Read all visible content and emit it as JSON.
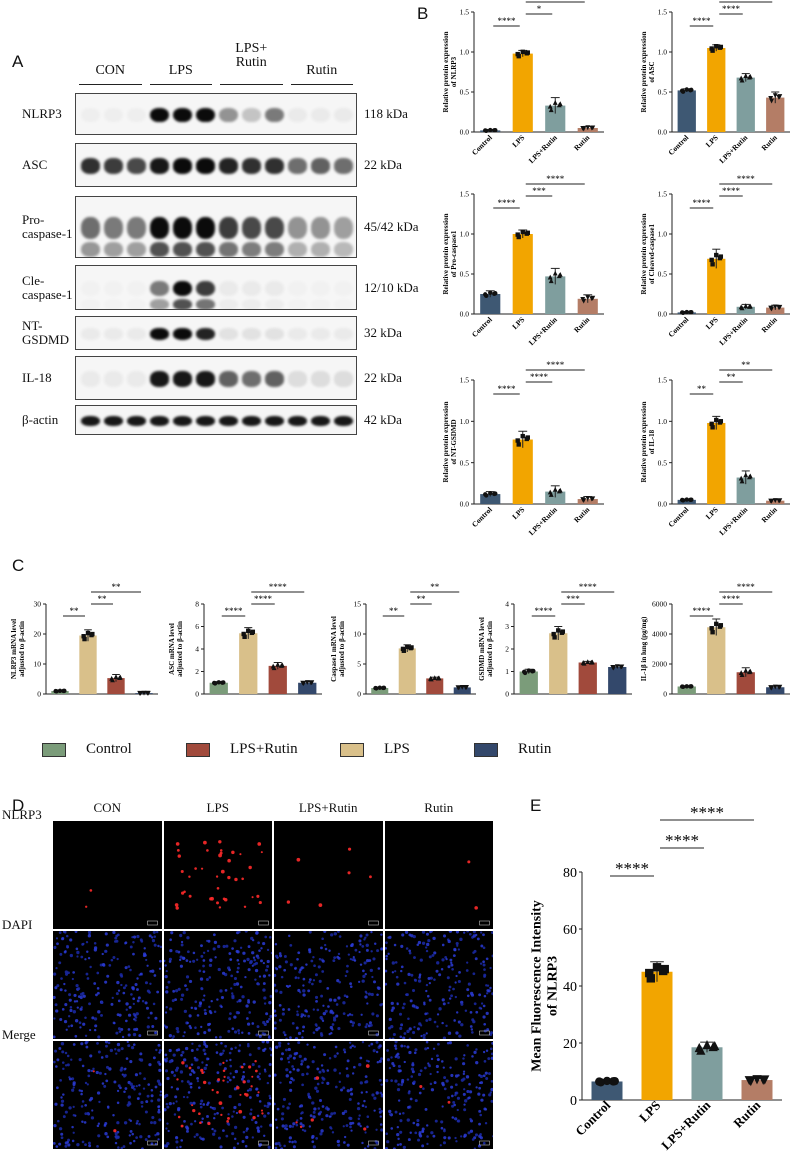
{
  "panels": {
    "A": "A",
    "B": "B",
    "C": "C",
    "D": "D",
    "E": "E"
  },
  "western_blot": {
    "groups": [
      "CON",
      "LPS",
      "LPS+\nRutin",
      "Rutin"
    ],
    "bands": [
      {
        "name": "NLRP3",
        "kda": "118 kDa",
        "intensity": [
          0.03,
          0.03,
          0.03,
          0.95,
          0.95,
          0.95,
          0.4,
          0.2,
          0.5,
          0.05,
          0.05,
          0.05
        ]
      },
      {
        "name": "ASC",
        "kda": "22 kDa",
        "intensity": [
          0.8,
          0.75,
          0.7,
          0.9,
          0.95,
          0.95,
          0.85,
          0.8,
          0.8,
          0.55,
          0.6,
          0.55
        ]
      },
      {
        "name": "Pro-\ncaspase-1",
        "kda": "45/42 kDa",
        "intensity": [
          0.55,
          0.5,
          0.5,
          0.95,
          0.95,
          0.95,
          0.75,
          0.7,
          0.7,
          0.4,
          0.4,
          0.35
        ]
      },
      {
        "name": "Cle-\ncaspase-1",
        "kda": "12/10 kDa",
        "intensity": [
          0.02,
          0.02,
          0.02,
          0.5,
          0.95,
          0.75,
          0.05,
          0.05,
          0.05,
          0.02,
          0.02,
          0.02
        ]
      },
      {
        "name": "NT-\nGSDMD",
        "kda": "32 kDa",
        "intensity": [
          0.05,
          0.05,
          0.05,
          0.95,
          0.95,
          0.85,
          0.08,
          0.08,
          0.08,
          0.05,
          0.05,
          0.05
        ]
      },
      {
        "name": "IL-18",
        "kda": "22 kDa",
        "intensity": [
          0.05,
          0.05,
          0.05,
          0.9,
          0.9,
          0.9,
          0.6,
          0.55,
          0.6,
          0.1,
          0.1,
          0.1
        ]
      },
      {
        "name": "β-actin",
        "kda": "42 kDa",
        "intensity": [
          0.9,
          0.9,
          0.9,
          0.9,
          0.9,
          0.9,
          0.9,
          0.9,
          0.9,
          0.9,
          0.9,
          0.9
        ]
      }
    ]
  },
  "colors": {
    "control": "#3e5873",
    "lps": "#f2a500",
    "lps_rutin": "#7f9e9e",
    "rutin": "#b47d66",
    "c_control": "#7b9c7a",
    "c_lps": "#d9c08a",
    "c_lps_rutin": "#a14a3c",
    "c_rutin": "#33486b"
  },
  "chart_data": [
    {
      "id": "B1",
      "type": "bar",
      "categories": [
        "Control",
        "LPS",
        "LPS+Rutin",
        "Rutin"
      ],
      "values": [
        0.02,
        0.98,
        0.33,
        0.05
      ],
      "errors": [
        0.01,
        0.04,
        0.1,
        0.02
      ],
      "ylabel": "Relative protein expression\nof NLRP3",
      "ylim": [
        0,
        1.5
      ],
      "yticks": [
        "0.0",
        "0.5",
        "1.0",
        "1.5"
      ],
      "sig": [
        {
          "from": 0,
          "to": 1,
          "label": "****"
        },
        {
          "from": 1,
          "to": 2,
          "label": "*"
        },
        {
          "from": 1,
          "to": 3,
          "label": "***"
        }
      ]
    },
    {
      "id": "B2",
      "type": "bar",
      "categories": [
        "Control",
        "LPS",
        "LPS+Rutin",
        "Rutin"
      ],
      "values": [
        0.52,
        1.05,
        0.68,
        0.43
      ],
      "errors": [
        0.02,
        0.04,
        0.05,
        0.07
      ],
      "ylabel": "Relative protein expression\nof ASC",
      "ylim": [
        0,
        1.5
      ],
      "yticks": [
        "0.0",
        "0.5",
        "1.0",
        "1.5"
      ],
      "sig": [
        {
          "from": 0,
          "to": 1,
          "label": "****"
        },
        {
          "from": 1,
          "to": 2,
          "label": "****"
        },
        {
          "from": 1,
          "to": 3,
          "label": "***"
        }
      ]
    },
    {
      "id": "B3",
      "type": "bar",
      "categories": [
        "Control",
        "LPS",
        "LPS+Rutin",
        "Rutin"
      ],
      "values": [
        0.25,
        1.0,
        0.47,
        0.19
      ],
      "errors": [
        0.04,
        0.05,
        0.1,
        0.05
      ],
      "ylabel": "Relative protein expression\nof Pro-caspase1",
      "ylim": [
        0,
        1.5
      ],
      "yticks": [
        "0.0",
        "0.5",
        "1.0",
        "1.5"
      ],
      "sig": [
        {
          "from": 0,
          "to": 1,
          "label": "****"
        },
        {
          "from": 1,
          "to": 2,
          "label": "***"
        },
        {
          "from": 1,
          "to": 3,
          "label": "****"
        }
      ]
    },
    {
      "id": "B4",
      "type": "bar",
      "categories": [
        "Control",
        "LPS",
        "LPS+Rutin",
        "Rutin"
      ],
      "values": [
        0.02,
        0.69,
        0.09,
        0.08
      ],
      "errors": [
        0.01,
        0.12,
        0.03,
        0.03
      ],
      "ylabel": "Relative protein expression\nof Cleaved-caspase1",
      "ylim": [
        0,
        1.5
      ],
      "yticks": [
        "0.0",
        "0.5",
        "1.0",
        "1.5"
      ],
      "sig": [
        {
          "from": 0,
          "to": 1,
          "label": "****"
        },
        {
          "from": 1,
          "to": 2,
          "label": "****"
        },
        {
          "from": 1,
          "to": 3,
          "label": "****"
        }
      ]
    },
    {
      "id": "B5",
      "type": "bar",
      "categories": [
        "Control",
        "LPS",
        "LPS+Rutin",
        "Rutin"
      ],
      "values": [
        0.12,
        0.78,
        0.15,
        0.06
      ],
      "errors": [
        0.03,
        0.1,
        0.07,
        0.03
      ],
      "ylabel": "Relative protein expression\nof NT-GSDMD",
      "ylim": [
        0,
        1.5
      ],
      "yticks": [
        "0.0",
        "0.5",
        "1.0",
        "1.5"
      ],
      "sig": [
        {
          "from": 0,
          "to": 1,
          "label": "****"
        },
        {
          "from": 1,
          "to": 2,
          "label": "****"
        },
        {
          "from": 1,
          "to": 3,
          "label": "****"
        }
      ]
    },
    {
      "id": "B6",
      "type": "bar",
      "categories": [
        "Control",
        "LPS",
        "LPS+Rutin",
        "Rutin"
      ],
      "values": [
        0.05,
        0.98,
        0.32,
        0.04
      ],
      "errors": [
        0.01,
        0.08,
        0.08,
        0.01
      ],
      "ylabel": "Relative protein expression\nof IL-18",
      "ylim": [
        0,
        1.5
      ],
      "yticks": [
        "0.0",
        "0.5",
        "1.0",
        "1.5"
      ],
      "sig": [
        {
          "from": 0,
          "to": 1,
          "label": "**"
        },
        {
          "from": 1,
          "to": 2,
          "label": "**"
        },
        {
          "from": 1,
          "to": 3,
          "label": "**"
        }
      ]
    },
    {
      "id": "C1",
      "type": "bar",
      "categories": [
        "Control",
        "LPS",
        "LPS+Rutin",
        "Rutin"
      ],
      "values": [
        1.0,
        19.5,
        5.3,
        0.3
      ],
      "errors": [
        0.2,
        1.9,
        1.2,
        0.1
      ],
      "ylabel": "NLRP3 mRNA level\nadjusted to β-actin",
      "ylim": [
        0,
        30
      ],
      "yticks": [
        "0",
        "10",
        "20",
        "30"
      ],
      "sig": [
        {
          "from": 0,
          "to": 1,
          "label": "**"
        },
        {
          "from": 1,
          "to": 2,
          "label": "**"
        },
        {
          "from": 1,
          "to": 3,
          "label": "**"
        }
      ]
    },
    {
      "id": "C2",
      "type": "bar",
      "categories": [
        "Control",
        "LPS",
        "LPS+Rutin",
        "Rutin"
      ],
      "values": [
        1.0,
        5.4,
        2.5,
        1.0
      ],
      "errors": [
        0.1,
        0.5,
        0.3,
        0.1
      ],
      "ylabel": "ASC mRNA level\nadjusted to β-actin",
      "ylim": [
        0,
        8
      ],
      "yticks": [
        "0",
        "2",
        "4",
        "6",
        "8"
      ],
      "sig": [
        {
          "from": 0,
          "to": 1,
          "label": "****"
        },
        {
          "from": 1,
          "to": 2,
          "label": "****"
        },
        {
          "from": 1,
          "to": 3,
          "label": "****"
        }
      ]
    },
    {
      "id": "C3",
      "type": "bar",
      "categories": [
        "Control",
        "LPS",
        "LPS+Rutin",
        "Rutin"
      ],
      "values": [
        1.0,
        7.6,
        2.6,
        1.1
      ],
      "errors": [
        0.1,
        0.6,
        0.2,
        0.1
      ],
      "ylabel": "Caspase1 mRNA level\nadjusted to β-actin",
      "ylim": [
        0,
        15
      ],
      "yticks": [
        "0",
        "5",
        "10",
        "15"
      ],
      "sig": [
        {
          "from": 0,
          "to": 1,
          "label": "**"
        },
        {
          "from": 1,
          "to": 2,
          "label": "**"
        },
        {
          "from": 1,
          "to": 3,
          "label": "**"
        }
      ]
    },
    {
      "id": "C4",
      "type": "bar",
      "categories": [
        "Control",
        "LPS",
        "LPS+Rutin",
        "Rutin"
      ],
      "values": [
        1.0,
        2.7,
        1.4,
        1.2
      ],
      "errors": [
        0.1,
        0.3,
        0.05,
        0.05
      ],
      "ylabel": "GSDMD mRNA level\nadjusted to β-actin",
      "ylim": [
        0,
        4
      ],
      "yticks": [
        "0",
        "1",
        "2",
        "3",
        "4"
      ],
      "sig": [
        {
          "from": 0,
          "to": 1,
          "label": "****"
        },
        {
          "from": 1,
          "to": 2,
          "label": "***"
        },
        {
          "from": 1,
          "to": 3,
          "label": "****"
        }
      ]
    },
    {
      "id": "C5",
      "type": "bar",
      "categories": [
        "Control",
        "LPS",
        "LPS+Rutin",
        "Rutin"
      ],
      "values": [
        500,
        4450,
        1450,
        450
      ],
      "errors": [
        30,
        550,
        300,
        80
      ],
      "ylabel": "IL-1β in lung (pg/mg)",
      "ylim": [
        0,
        6000
      ],
      "yticks": [
        "0",
        "2000",
        "4000",
        "6000"
      ],
      "sig": [
        {
          "from": 0,
          "to": 1,
          "label": "****"
        },
        {
          "from": 1,
          "to": 2,
          "label": "****"
        },
        {
          "from": 1,
          "to": 3,
          "label": "****"
        }
      ]
    },
    {
      "id": "E",
      "type": "bar",
      "categories": [
        "Control",
        "LPS",
        "LPS+Rutin",
        "Rutin"
      ],
      "values": [
        6.5,
        45,
        18.5,
        7.0
      ],
      "errors": [
        0.4,
        3.5,
        1.8,
        0.6
      ],
      "ylabel": "Mean Fluorescence Intensity\nof NLRP3",
      "ylim": [
        0,
        80
      ],
      "yticks": [
        "0",
        "20",
        "40",
        "60",
        "80"
      ],
      "sig": [
        {
          "from": 0,
          "to": 1,
          "label": "****"
        },
        {
          "from": 1,
          "to": 2,
          "label": "****"
        },
        {
          "from": 1,
          "to": 3,
          "label": "****"
        }
      ]
    }
  ],
  "legend_c": [
    {
      "label": "Control",
      "color_key": "c_control"
    },
    {
      "label": "LPS+Rutin",
      "color_key": "c_lps_rutin"
    },
    {
      "label": "LPS",
      "color_key": "c_lps"
    },
    {
      "label": "Rutin",
      "color_key": "c_rutin"
    }
  ],
  "microscopy": {
    "columns": [
      "CON",
      "LPS",
      "LPS+Rutin",
      "Rutin"
    ],
    "rows": [
      "NLRP3",
      "DAPI",
      "Merge"
    ]
  }
}
